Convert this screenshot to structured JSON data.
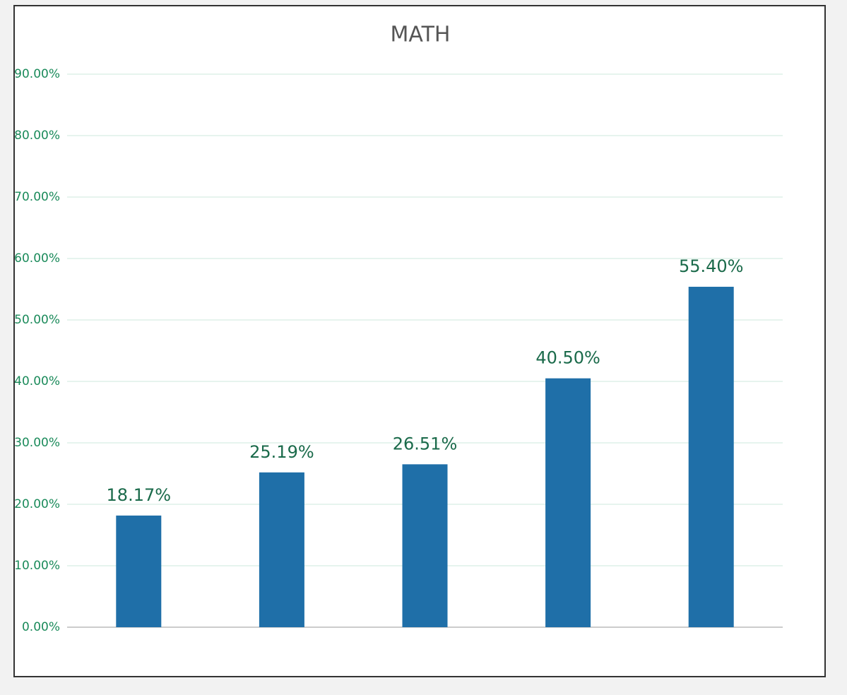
{
  "chart_data": {
    "type": "bar",
    "title": "MATH",
    "categories": [
      null,
      null,
      null,
      null,
      null
    ],
    "values": [
      18.17,
      25.19,
      26.51,
      40.5,
      55.4
    ],
    "value_labels": [
      "18.17%",
      "25.19%",
      "26.51%",
      "40.50%",
      "55.40%"
    ],
    "color": "#1f6fa8",
    "ylim": [
      0,
      90
    ],
    "yticks": [
      {
        "value": 0,
        "label": "0.00%"
      },
      {
        "value": 10,
        "label": "10.00%"
      },
      {
        "value": 20,
        "label": "20.00%"
      },
      {
        "value": 30,
        "label": "30.00%"
      },
      {
        "value": 40,
        "label": "40.00%"
      },
      {
        "value": 50,
        "label": "50.00%"
      },
      {
        "value": 60,
        "label": "60.00%"
      },
      {
        "value": 70,
        "label": "70.00%"
      },
      {
        "value": 80,
        "label": "80.00%"
      },
      {
        "value": 90,
        "label": "90.00%"
      }
    ],
    "grid": true
  }
}
